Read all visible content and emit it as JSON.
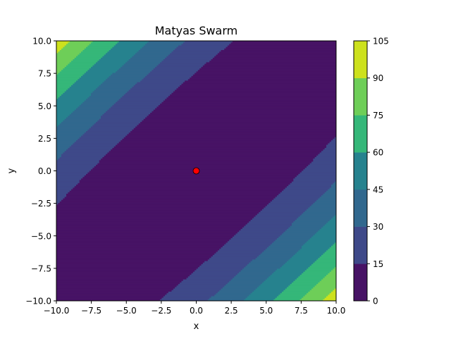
{
  "chart_data": {
    "type": "heatmap",
    "plot_kind": "filled-contour",
    "function": "matyas",
    "title": "Matyas Swarm",
    "xlabel": "x",
    "ylabel": "y",
    "xlim": [
      -10,
      10
    ],
    "ylim": [
      -10,
      10
    ],
    "xticks": [
      -10,
      -7.5,
      -5,
      -2.5,
      0,
      2.5,
      5,
      7.5,
      10
    ],
    "xtick_labels": [
      "−10.0",
      "−7.5",
      "−5.0",
      "−2.5",
      "0.0",
      "2.5",
      "5.0",
      "7.5",
      "10.0"
    ],
    "yticks": [
      -10,
      -7.5,
      -5,
      -2.5,
      0,
      2.5,
      5,
      7.5,
      10
    ],
    "ytick_labels": [
      "−10.0",
      "−7.5",
      "−5.0",
      "−2.5",
      "0.0",
      "2.5",
      "5.0",
      "7.5",
      "10.0"
    ],
    "levels": [
      0,
      15,
      30,
      45,
      60,
      75,
      90,
      105
    ],
    "level_labels": [
      "0",
      "15",
      "30",
      "45",
      "60",
      "75",
      "90",
      "105"
    ],
    "level_colors": [
      "#471365",
      "#3e4989",
      "#31688e",
      "#26828e",
      "#35b779",
      "#6ece58",
      "#cde11d"
    ],
    "grid": false,
    "colorbar": "right",
    "points": [
      {
        "x": 0,
        "y": 0,
        "color": "#ff0000",
        "edge": "#000000"
      }
    ]
  }
}
